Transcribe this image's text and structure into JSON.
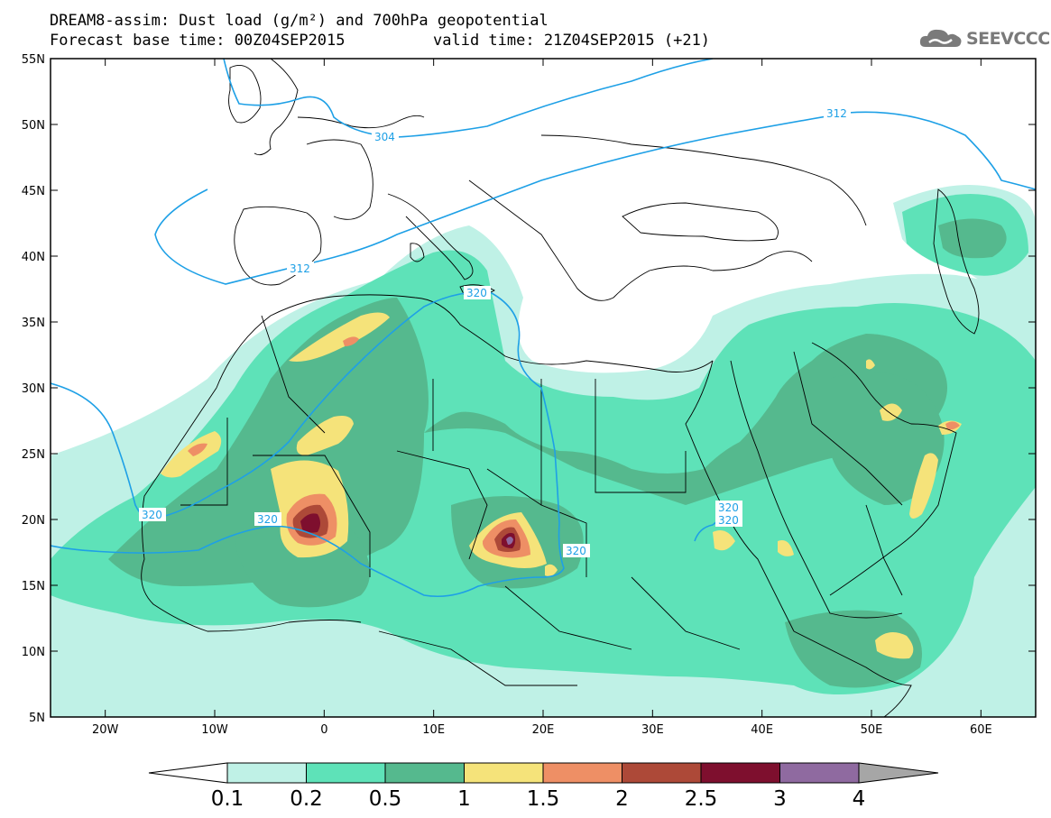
{
  "title": {
    "line1": "DREAM8-assim: Dust load (g/m²) and 700hPa geopotential",
    "base_time": "Forecast base time: 00Z04SEP2015",
    "valid_time": "valid time: 21Z04SEP2015 (+21)"
  },
  "logo": {
    "text": "SEEVCCC",
    "icon": "cloud-logo-icon"
  },
  "map": {
    "lat_labels": [
      "55N",
      "50N",
      "45N",
      "40N",
      "35N",
      "30N",
      "25N",
      "20N",
      "15N",
      "10N",
      "5N"
    ],
    "lon_labels": [
      "20W",
      "10W",
      "0",
      "10E",
      "20E",
      "30E",
      "40E",
      "50E",
      "60E"
    ],
    "extent": {
      "lon": [
        -25,
        65
      ],
      "lat": [
        5,
        55
      ]
    },
    "geopotential_contour_color": "#1ea0e6",
    "contour_labels": [
      "304",
      "312",
      "312",
      "320",
      "320",
      "320",
      "320",
      "320",
      "320"
    ]
  },
  "colorbar": {
    "labels": [
      "0.1",
      "0.2",
      "0.5",
      "1",
      "1.5",
      "2",
      "2.5",
      "3",
      "4"
    ],
    "colors": [
      "#bff1e6",
      "#5ee2b8",
      "#55b98e",
      "#f5e37a",
      "#ee8f65",
      "#ad4938",
      "#7e0f2e",
      "#8f6aa0",
      "#a6a6a6"
    ]
  }
}
